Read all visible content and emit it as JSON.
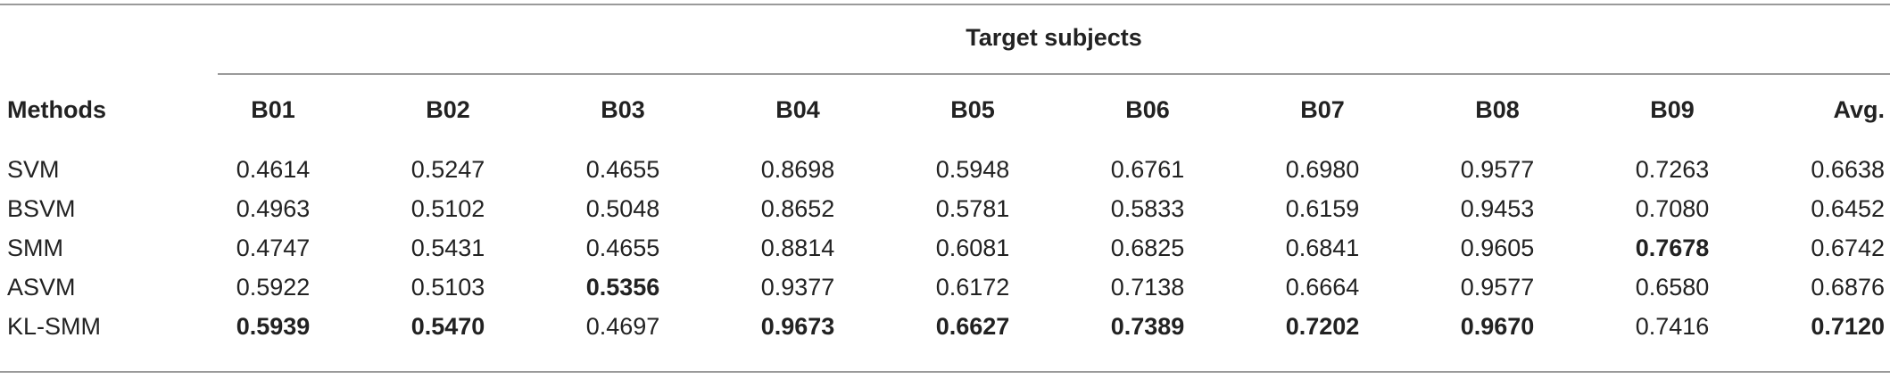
{
  "table": {
    "group_header": "Target subjects",
    "method_header": "Methods",
    "columns": [
      "B01",
      "B02",
      "B03",
      "B04",
      "B05",
      "B06",
      "B07",
      "B08",
      "B09",
      "Avg."
    ],
    "rows": [
      {
        "method": "SVM",
        "cells": [
          {
            "v": "0.4614",
            "bold": false
          },
          {
            "v": "0.5247",
            "bold": false
          },
          {
            "v": "0.4655",
            "bold": false
          },
          {
            "v": "0.8698",
            "bold": false
          },
          {
            "v": "0.5948",
            "bold": false
          },
          {
            "v": "0.6761",
            "bold": false
          },
          {
            "v": "0.6980",
            "bold": false
          },
          {
            "v": "0.9577",
            "bold": false
          },
          {
            "v": "0.7263",
            "bold": false
          },
          {
            "v": "0.6638",
            "bold": false
          }
        ]
      },
      {
        "method": "BSVM",
        "cells": [
          {
            "v": "0.4963",
            "bold": false
          },
          {
            "v": "0.5102",
            "bold": false
          },
          {
            "v": "0.5048",
            "bold": false
          },
          {
            "v": "0.8652",
            "bold": false
          },
          {
            "v": "0.5781",
            "bold": false
          },
          {
            "v": "0.5833",
            "bold": false
          },
          {
            "v": "0.6159",
            "bold": false
          },
          {
            "v": "0.9453",
            "bold": false
          },
          {
            "v": "0.7080",
            "bold": false
          },
          {
            "v": "0.6452",
            "bold": false
          }
        ]
      },
      {
        "method": "SMM",
        "cells": [
          {
            "v": "0.4747",
            "bold": false
          },
          {
            "v": "0.5431",
            "bold": false
          },
          {
            "v": "0.4655",
            "bold": false
          },
          {
            "v": "0.8814",
            "bold": false
          },
          {
            "v": "0.6081",
            "bold": false
          },
          {
            "v": "0.6825",
            "bold": false
          },
          {
            "v": "0.6841",
            "bold": false
          },
          {
            "v": "0.9605",
            "bold": false
          },
          {
            "v": "0.7678",
            "bold": true
          },
          {
            "v": "0.6742",
            "bold": false
          }
        ]
      },
      {
        "method": "ASVM",
        "cells": [
          {
            "v": "0.5922",
            "bold": false
          },
          {
            "v": "0.5103",
            "bold": false
          },
          {
            "v": "0.5356",
            "bold": true
          },
          {
            "v": "0.9377",
            "bold": false
          },
          {
            "v": "0.6172",
            "bold": false
          },
          {
            "v": "0.7138",
            "bold": false
          },
          {
            "v": "0.6664",
            "bold": false
          },
          {
            "v": "0.9577",
            "bold": false
          },
          {
            "v": "0.6580",
            "bold": false
          },
          {
            "v": "0.6876",
            "bold": false
          }
        ]
      },
      {
        "method": "KL-SMM",
        "cells": [
          {
            "v": "0.5939",
            "bold": true
          },
          {
            "v": "0.5470",
            "bold": true
          },
          {
            "v": "0.4697",
            "bold": false
          },
          {
            "v": "0.9673",
            "bold": true
          },
          {
            "v": "0.6627",
            "bold": true
          },
          {
            "v": "0.7389",
            "bold": true
          },
          {
            "v": "0.7202",
            "bold": true
          },
          {
            "v": "0.9670",
            "bold": true
          },
          {
            "v": "0.7416",
            "bold": false
          },
          {
            "v": "0.7120",
            "bold": true
          }
        ]
      }
    ]
  }
}
